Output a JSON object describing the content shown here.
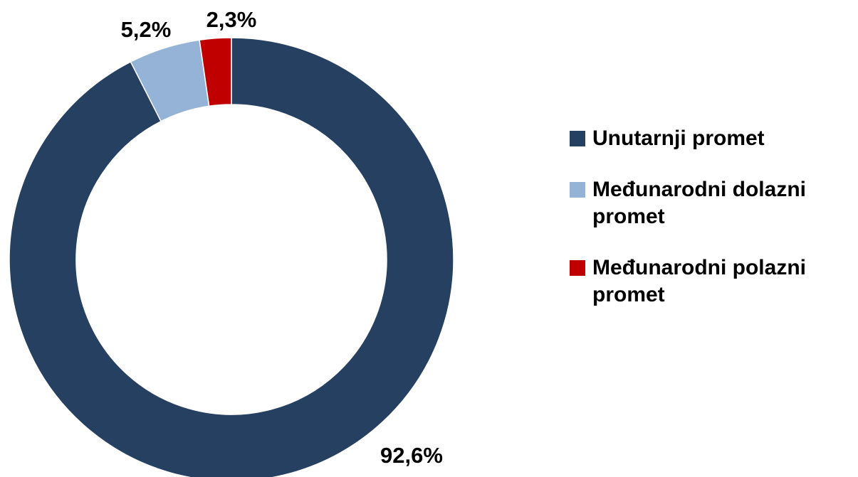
{
  "chart_data": {
    "type": "donut",
    "categories": [
      "Unutarnji promet",
      "Međunarodni dolazni promet",
      "Međunarodni polazni promet"
    ],
    "values": [
      92.6,
      5.2,
      2.3
    ],
    "value_labels": [
      "92,6%",
      "5,2%",
      "2,3%"
    ],
    "colors": [
      "#264061",
      "#95b3d7",
      "#c00000"
    ],
    "legend": "right"
  }
}
